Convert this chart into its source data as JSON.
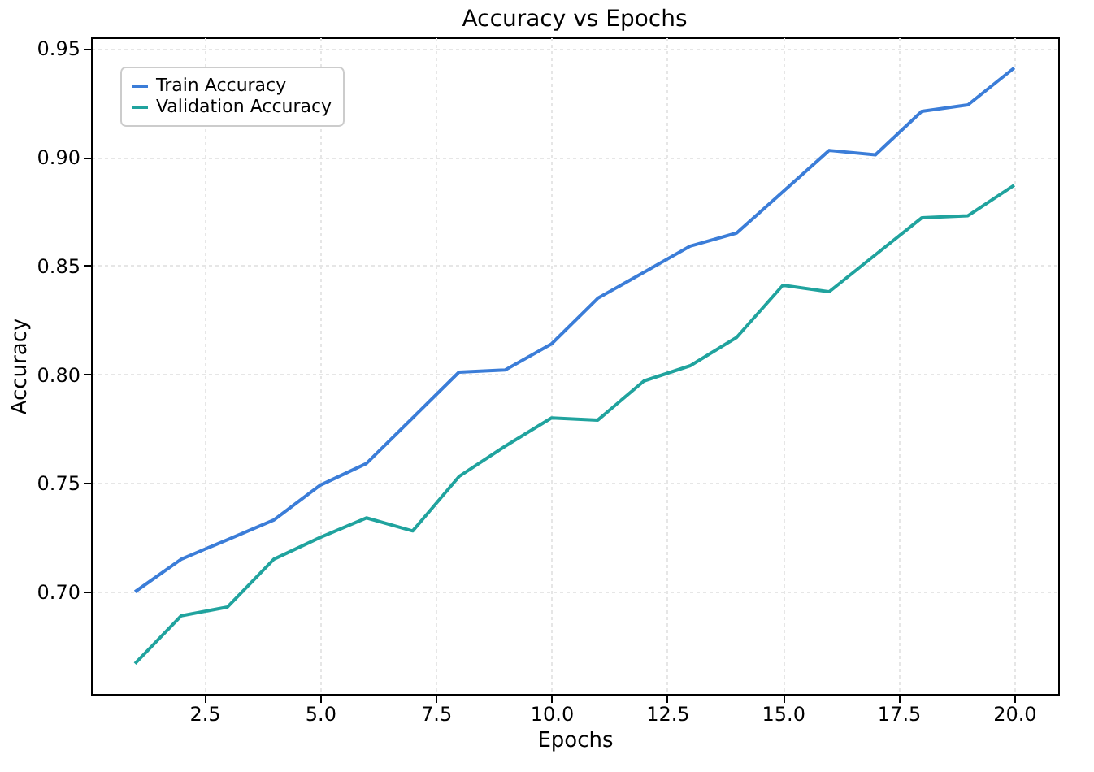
{
  "chart_data": {
    "type": "line",
    "title": "Accuracy vs Epochs",
    "xlabel": "Epochs",
    "ylabel": "Accuracy",
    "x": [
      1,
      2,
      3,
      4,
      5,
      6,
      7,
      8,
      9,
      10,
      11,
      12,
      13,
      14,
      15,
      16,
      17,
      18,
      19,
      20
    ],
    "series": [
      {
        "name": "Train Accuracy",
        "color": "#3b7dd8",
        "values": [
          0.7,
          0.715,
          0.724,
          0.733,
          0.749,
          0.759,
          0.78,
          0.801,
          0.802,
          0.814,
          0.835,
          0.847,
          0.859,
          0.865,
          0.884,
          0.903,
          0.901,
          0.921,
          0.924,
          0.941
        ]
      },
      {
        "name": "Validation Accuracy",
        "color": "#20a39e",
        "values": [
          0.667,
          0.689,
          0.693,
          0.715,
          0.725,
          0.734,
          0.728,
          0.753,
          0.767,
          0.78,
          0.779,
          0.797,
          0.804,
          0.817,
          0.841,
          0.838,
          0.855,
          0.872,
          0.873,
          0.887
        ]
      }
    ],
    "xlim": [
      0.05,
      20.95
    ],
    "ylim": [
      0.653,
      0.955
    ],
    "xticks": [
      {
        "value": 2.5,
        "label": "2.5"
      },
      {
        "value": 5,
        "label": "5.0"
      },
      {
        "value": 7.5,
        "label": "7.5"
      },
      {
        "value": 10,
        "label": "10.0"
      },
      {
        "value": 12.5,
        "label": "12.5"
      },
      {
        "value": 15,
        "label": "15.0"
      },
      {
        "value": 17.5,
        "label": "17.5"
      },
      {
        "value": 20,
        "label": "20.0"
      }
    ],
    "yticks": [
      {
        "value": 0.7,
        "label": "0.70"
      },
      {
        "value": 0.75,
        "label": "0.75"
      },
      {
        "value": 0.8,
        "label": "0.80"
      },
      {
        "value": 0.85,
        "label": "0.85"
      },
      {
        "value": 0.9,
        "label": "0.90"
      },
      {
        "value": 0.95,
        "label": "0.95"
      }
    ],
    "grid": true,
    "legend": "top left",
    "marker": "none",
    "line_style": "solid"
  }
}
